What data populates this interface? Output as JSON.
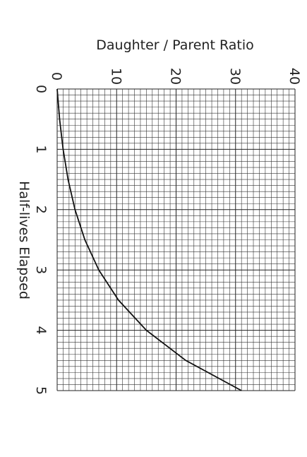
{
  "chart_data": {
    "type": "line",
    "title": "",
    "xlabel": "Half-lives Elapsed",
    "ylabel": "Daughter / Parent Ratio",
    "xlim": [
      0,
      5
    ],
    "ylim": [
      0,
      40
    ],
    "x_ticks": [
      "0",
      "1",
      "2",
      "3",
      "4",
      "5"
    ],
    "y_ticks": [
      "0",
      "10",
      "20",
      "30",
      "40"
    ],
    "grid": true,
    "orientation": "rotated 90 degrees clockwise",
    "series": [
      {
        "x": [
          0,
          0.5,
          1,
          1.5,
          2,
          2.5,
          3,
          3.5,
          4,
          4.5,
          5
        ],
        "y": [
          0,
          0.41,
          1,
          1.83,
          3,
          4.66,
          7,
          10.31,
          15,
          21.63,
          31
        ]
      }
    ]
  }
}
